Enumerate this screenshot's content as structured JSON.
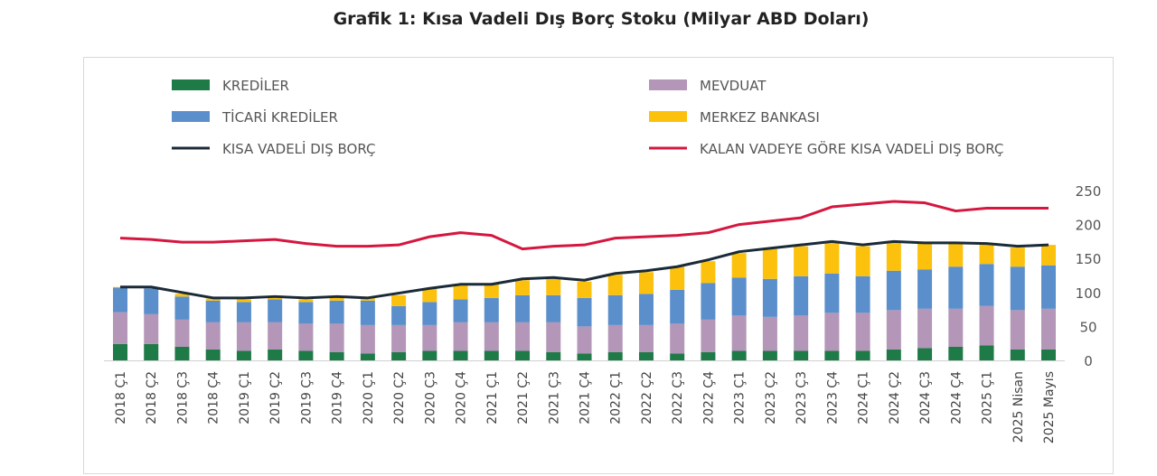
{
  "chart_data": {
    "type": "bar",
    "title": "Grafik 1: Kısa Vadeli Dış Borç Stoku (Milyar ABD Doları)",
    "xlabel": "",
    "ylabel": "",
    "ylim": [
      0,
      250
    ],
    "yticks": [
      "0",
      "50",
      "100",
      "150",
      "200",
      "250"
    ],
    "legend_position": "top",
    "categories": [
      "2018 Ç1",
      "2018 Ç2",
      "2018 Ç3",
      "2018 Ç4",
      "2019 Ç1",
      "2019 Ç2",
      "2019 Ç3",
      "2019 Ç4",
      "2020 Ç1",
      "2020 Ç2",
      "2020 Ç3",
      "2020 Ç4",
      "2021 Ç1",
      "2021 Ç2",
      "2021 Ç3",
      "2021 Ç4",
      "2022 Ç1",
      "2022 Ç2",
      "2022 Ç3",
      "2022 Ç4",
      "2023 Ç1",
      "2023 Ç2",
      "2023 Ç3",
      "2023 Ç4",
      "2024 Ç1",
      "2024 Ç2",
      "2024 Ç3",
      "2024 Ç4",
      "2025 Ç1",
      "2025 Nisan",
      "2025 Mayıs"
    ],
    "series": [
      {
        "name": "KREDİLER",
        "kind": "bar",
        "color": "#1e7a46",
        "values": [
          24,
          24,
          20,
          16,
          14,
          16,
          14,
          12,
          10,
          12,
          14,
          14,
          14,
          14,
          12,
          10,
          12,
          12,
          10,
          12,
          14,
          14,
          14,
          14,
          14,
          16,
          18,
          20,
          22,
          16,
          16
        ]
      },
      {
        "name": "MEVDUAT",
        "kind": "bar",
        "color": "#b496b8",
        "values": [
          47,
          44,
          40,
          40,
          42,
          40,
          40,
          42,
          42,
          40,
          38,
          42,
          42,
          42,
          44,
          40,
          40,
          40,
          44,
          48,
          52,
          50,
          52,
          56,
          56,
          58,
          58,
          56,
          58,
          58,
          60
        ]
      },
      {
        "name": "TİCARİ KREDİLER",
        "kind": "bar",
        "color": "#5b8fcb",
        "values": [
          36,
          38,
          34,
          32,
          30,
          34,
          32,
          34,
          36,
          28,
          34,
          34,
          36,
          40,
          40,
          42,
          44,
          46,
          50,
          54,
          56,
          56,
          58,
          58,
          54,
          58,
          58,
          62,
          62,
          64,
          64
        ]
      },
      {
        "name": "MERKEZ BANKASI",
        "kind": "bar",
        "color": "#fcc10c",
        "values": [
          1,
          0,
          4,
          3,
          4,
          2,
          4,
          6,
          6,
          16,
          20,
          22,
          20,
          22,
          24,
          24,
          30,
          32,
          34,
          32,
          36,
          44,
          44,
          46,
          44,
          42,
          38,
          34,
          30,
          28,
          30
        ]
      },
      {
        "name": "KISA VADELİ DIŞ BORÇ",
        "kind": "line",
        "color": "#1b2a38",
        "values": [
          108,
          108,
          100,
          92,
          92,
          94,
          92,
          94,
          92,
          99,
          106,
          112,
          112,
          120,
          122,
          118,
          128,
          132,
          138,
          148,
          160,
          165,
          170,
          175,
          170,
          175,
          173,
          173,
          172,
          168,
          170
        ]
      },
      {
        "name": "KALAN VADEYE GÖRE KISA VADELİ DIŞ BORÇ",
        "kind": "line",
        "color": "#d5173f",
        "values": [
          180,
          178,
          174,
          174,
          176,
          178,
          172,
          168,
          168,
          170,
          182,
          188,
          184,
          164,
          168,
          170,
          180,
          182,
          184,
          188,
          200,
          205,
          210,
          226,
          230,
          234,
          232,
          220,
          224,
          224,
          224
        ]
      }
    ]
  }
}
